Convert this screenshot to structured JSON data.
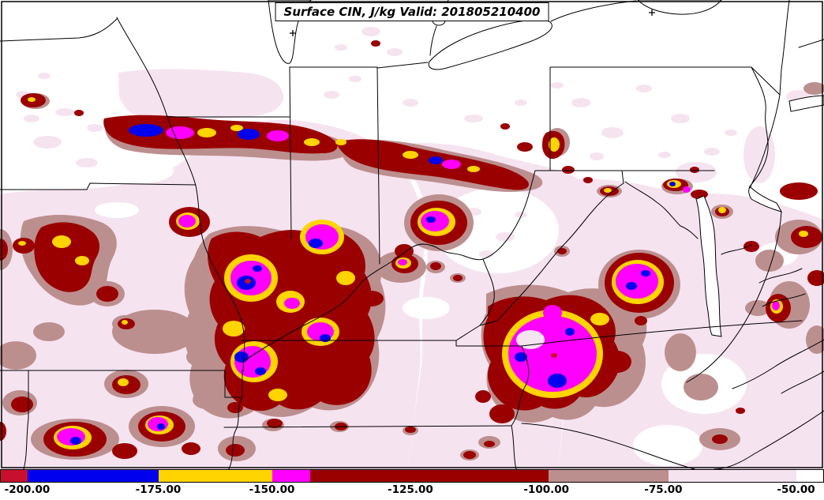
{
  "figure": {
    "title": "Surface CIN, J/kg Valid: 201805210400"
  },
  "palette": {
    "crimson": "#c8102e",
    "blue": "#0000ee",
    "yellow": "#ffd400",
    "magenta": "#ff00ff",
    "dark_red": "#9b0000",
    "rosy_brown": "#bc8f8f",
    "pale_pink": "#f6e3f0",
    "white": "#ffffff",
    "line": "#000000"
  },
  "chart_data": {
    "type": "heatmap",
    "chart_kind": "filled-contour weather map",
    "title": "Surface CIN, J/kg Valid: 201805210400",
    "variable": "Surface CIN",
    "units": "J/kg",
    "valid_time": "201805210400",
    "region": "Central and Eastern United States with state boundaries",
    "map_overlays": [
      "state boundaries",
      "Lake Michigan",
      "Lake Erie",
      "Lake St. Clair",
      "Lake Ontario",
      "Long Island",
      "Chesapeake Bay",
      "Delaware Bay",
      "Atlantic coastline"
    ],
    "legend_position": "bottom",
    "colorbar": {
      "orientation": "horizontal",
      "ticks": [
        {
          "label": "-200.00",
          "pos_pct": 3.3
        },
        {
          "label": "-175.00",
          "pos_pct": 19.2
        },
        {
          "label": "-150.00",
          "pos_pct": 33.0
        },
        {
          "label": "-125.00",
          "pos_pct": 49.8
        },
        {
          "label": "-100.00",
          "pos_pct": 66.3
        },
        {
          "label": "-75.00",
          "pos_pct": 80.5
        },
        {
          "label": "-50.00",
          "pos_pct": 96.6
        }
      ],
      "segments": [
        {
          "color": "#c8102e",
          "width_pct": 3.3,
          "meaning": "strongest CIN, left of -200"
        },
        {
          "color": "#0000ee",
          "width_pct": 15.9,
          "meaning": "-200 to -175"
        },
        {
          "color": "#ffd400",
          "width_pct": 13.8,
          "meaning": "-175 to -150"
        },
        {
          "color": "#ff00ff",
          "width_pct": 4.6,
          "meaning": "band right of -150"
        },
        {
          "color": "#9b0000",
          "width_pct": 29.0,
          "meaning": "band spanning -125 to -100"
        },
        {
          "color": "#bc8f8f",
          "width_pct": 14.6,
          "meaning": "-100 to -75"
        },
        {
          "color": "#f6e3f0",
          "width_pct": 15.5,
          "meaning": "-75 to -50"
        },
        {
          "color": "#ffffff",
          "width_pct": 3.3,
          "meaning": "weak or no CIN, right of -50"
        }
      ]
    }
  }
}
